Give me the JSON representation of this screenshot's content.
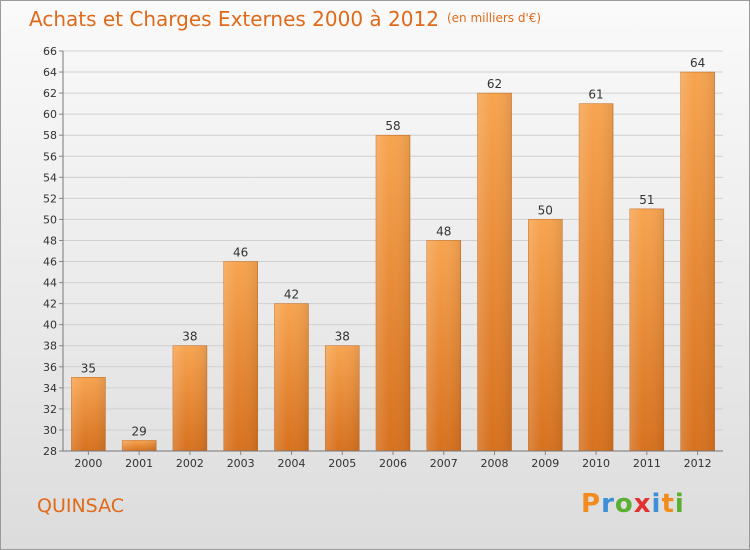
{
  "chart_data": {
    "type": "bar",
    "title": "Achats et Charges Externes 2000 à 2012",
    "subtitle": "(en milliers d'€)",
    "categories": [
      "2000",
      "2001",
      "2002",
      "2003",
      "2004",
      "2005",
      "2006",
      "2007",
      "2008",
      "2009",
      "2010",
      "2011",
      "2012"
    ],
    "values": [
      35,
      29,
      38,
      46,
      42,
      38,
      58,
      48,
      62,
      50,
      61,
      51,
      64
    ],
    "ylim": [
      28,
      66
    ],
    "yticks": [
      28,
      30,
      32,
      34,
      36,
      38,
      40,
      42,
      44,
      46,
      48,
      50,
      52,
      54,
      56,
      58,
      60,
      62,
      64,
      66
    ],
    "grid": true,
    "bar_color_top": "#f7a450",
    "bar_color_bottom": "#d7711e"
  },
  "footer": {
    "place": "QUINSAC",
    "logo_letters": [
      "P",
      "r",
      "o",
      "x",
      "i",
      "t",
      "i"
    ],
    "logo_colors": [
      "#f28c1e",
      "#3a8fd6",
      "#5ab030",
      "#e33030",
      "#3a8fd6",
      "#f28c1e",
      "#5ab030"
    ]
  }
}
